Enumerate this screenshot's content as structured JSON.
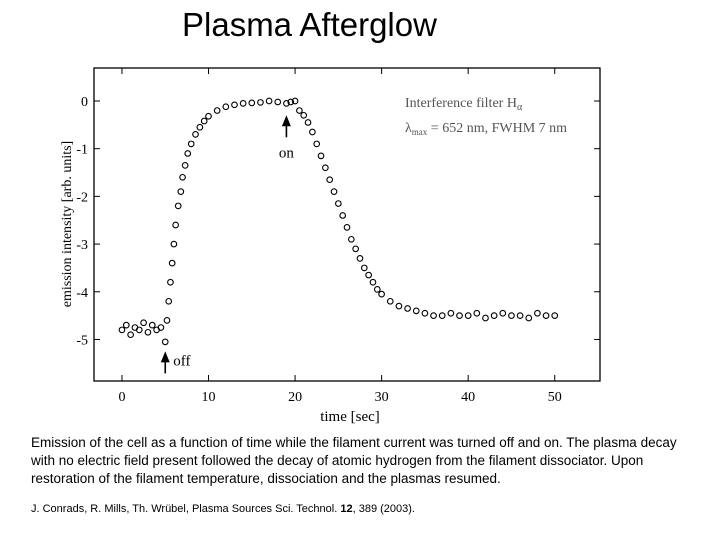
{
  "slide": {
    "title": "Plasma Afterglow",
    "caption": "Emission of the cell as a function of time while the filament current was turned off and on.  The plasma decay with no electric field present followed the decay of atomic hydrogen from the filament dissociator.  Upon restoration of the filament temperature, dissociation and the plasmas resumed.",
    "citation": {
      "authors": "J. Conrads, R. Mills, Th. Wrübel, Plasma Sources Sci. Technol. ",
      "volume": "12",
      "pages": ", 389 (2003)."
    }
  },
  "colors": {
    "points": "#000000",
    "axis": "#000000",
    "legend_text": "#555555"
  },
  "chart_data": {
    "type": "scatter",
    "xlabel": "time [sec]",
    "ylabel": "emission intensity [arb. units]",
    "xlim": [
      -3,
      55
    ],
    "ylim": [
      -5.85,
      0.65
    ],
    "xticks": [
      0,
      10,
      20,
      30,
      40,
      50
    ],
    "yticks": [
      0,
      -1,
      -2,
      -3,
      -4,
      -5
    ],
    "legend": {
      "line1_prefix": "Interference filter H",
      "line1_sub": "α",
      "line2_lambda": "λ",
      "line2_sub": "max",
      "line2_rest": " = 652 nm, FWHM 7 nm"
    },
    "annotations": [
      {
        "label": "off",
        "x": 5,
        "y": -5.25
      },
      {
        "label": "on",
        "x": 19,
        "y": -0.3
      }
    ],
    "series": [
      {
        "name": "emission",
        "x": [
          0,
          0.5,
          1,
          1.5,
          2,
          2.5,
          3,
          3.5,
          4,
          4.5,
          5,
          5.2,
          5.4,
          5.6,
          5.8,
          6,
          6.2,
          6.5,
          6.8,
          7,
          7.3,
          7.6,
          8,
          8.5,
          9,
          9.5,
          10,
          11,
          12,
          13,
          14,
          15,
          16,
          17,
          18,
          19,
          19.5,
          20,
          20.5,
          21,
          21.5,
          22,
          22.5,
          23,
          23.5,
          24,
          24.5,
          25,
          25.5,
          26,
          26.5,
          27,
          27.5,
          28,
          28.5,
          29,
          29.5,
          30,
          31,
          32,
          33,
          34,
          35,
          36,
          37,
          38,
          39,
          40,
          41,
          42,
          43,
          44,
          45,
          46,
          47,
          48,
          49,
          50
        ],
        "y": [
          -4.8,
          -4.7,
          -4.9,
          -4.75,
          -4.8,
          -4.65,
          -4.85,
          -4.7,
          -4.8,
          -4.75,
          -5.05,
          -4.6,
          -4.2,
          -3.8,
          -3.4,
          -3.0,
          -2.6,
          -2.2,
          -1.9,
          -1.6,
          -1.35,
          -1.1,
          -0.9,
          -0.7,
          -0.55,
          -0.42,
          -0.32,
          -0.2,
          -0.12,
          -0.08,
          -0.05,
          -0.04,
          -0.03,
          0.0,
          -0.02,
          -0.05,
          -0.02,
          0.0,
          -0.2,
          -0.3,
          -0.45,
          -0.65,
          -0.9,
          -1.15,
          -1.4,
          -1.65,
          -1.9,
          -2.15,
          -2.4,
          -2.65,
          -2.9,
          -3.1,
          -3.3,
          -3.5,
          -3.65,
          -3.8,
          -3.95,
          -4.05,
          -4.2,
          -4.3,
          -4.35,
          -4.4,
          -4.45,
          -4.5,
          -4.5,
          -4.45,
          -4.5,
          -4.5,
          -4.45,
          -4.55,
          -4.5,
          -4.45,
          -4.5,
          -4.5,
          -4.55,
          -4.45,
          -4.5,
          -4.5
        ]
      }
    ]
  }
}
